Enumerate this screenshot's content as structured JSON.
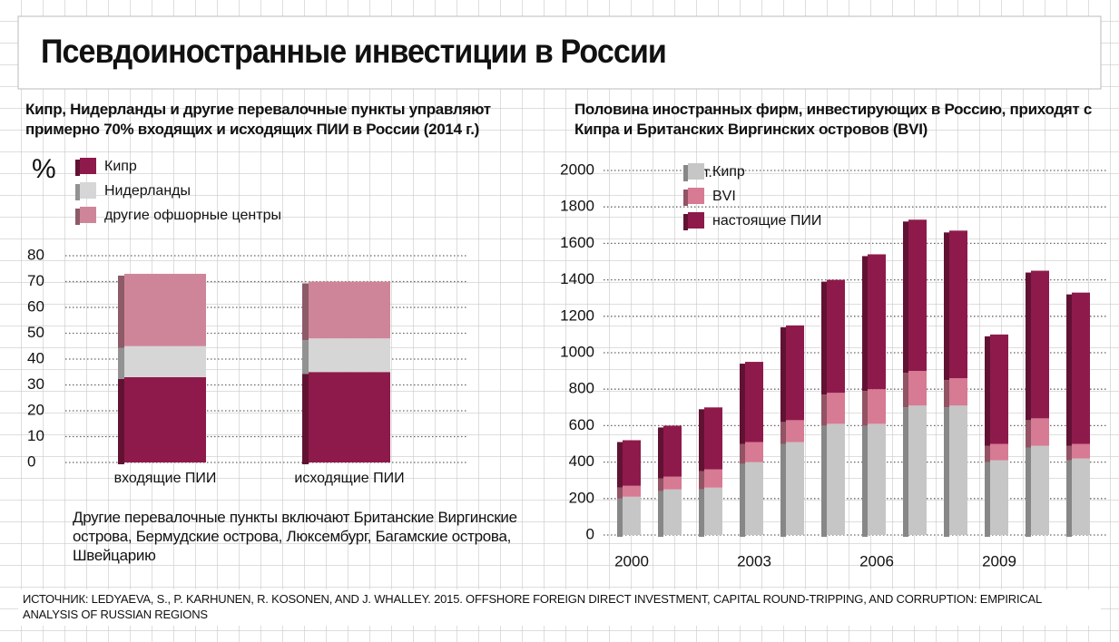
{
  "title": "Псевдоиностранные инвестиции в России",
  "note": "Другие перевалочные пункты включают Британские Виргинские острова, Бермудские острова, Люксембург, Багамские острова, Швейцарию",
  "source": "ИСТОЧНИК: LEDYAEVA, S., P. KARHUNEN, R. KOSONEN, AND J. WHALLEY. 2015. OFFSHORE FOREIGN DIRECT INVESTMENT, CAPITAL ROUND-TRIPPING, AND CORRUPTION: EMPIRICAL ANALYSIS OF RUSSIAN REGIONS",
  "chart_data": [
    {
      "type": "bar",
      "stacked": true,
      "subtitle": "Кипр, Нидерланды и другие перевалочные пункты управляют примерно 70% входящих и исходящих ПИИ в России (2014 г.)",
      "unit": "%",
      "categories": [
        "входящие ПИИ",
        "исходящие ПИИ"
      ],
      "series": [
        {
          "name": "Кипр",
          "color": "#8e1a4b",
          "values": [
            33,
            35
          ]
        },
        {
          "name": "Нидерланды",
          "color": "#d6d6d6",
          "values": [
            12,
            13
          ]
        },
        {
          "name": "другие офшорные центры",
          "color": "#cf8599",
          "values": [
            28,
            22
          ]
        }
      ],
      "ylim": [
        0,
        80
      ],
      "yticks": [
        0,
        10,
        20,
        30,
        40,
        50,
        60,
        70,
        80
      ],
      "grid": true
    },
    {
      "type": "bar",
      "stacked": true,
      "subtitle": "Половина иностранных фирм, инвестирующих в Россию, приходят с Кипра и Британских Виргинских островов (BVI)",
      "unit": "шт.",
      "categories": [
        "2000",
        null,
        null,
        "2003",
        null,
        null,
        "2006",
        null,
        null,
        "2009",
        null,
        null
      ],
      "series": [
        {
          "name": "Кипр",
          "color": "#c6c6c6",
          "values": [
            210,
            250,
            260,
            400,
            510,
            610,
            610,
            710,
            710,
            410,
            490,
            420
          ]
        },
        {
          "name": "BVI",
          "color": "#d77a93",
          "values": [
            60,
            70,
            100,
            110,
            120,
            170,
            190,
            190,
            150,
            90,
            150,
            80
          ]
        },
        {
          "name": "настоящие ПИИ",
          "color": "#8e1a4b",
          "values": [
            250,
            280,
            340,
            440,
            520,
            620,
            740,
            830,
            810,
            600,
            810,
            830
          ]
        }
      ],
      "ylim": [
        0,
        2000
      ],
      "yticks": [
        0,
        200,
        400,
        600,
        800,
        1000,
        1200,
        1400,
        1600,
        1800,
        2000
      ],
      "grid": true
    }
  ]
}
